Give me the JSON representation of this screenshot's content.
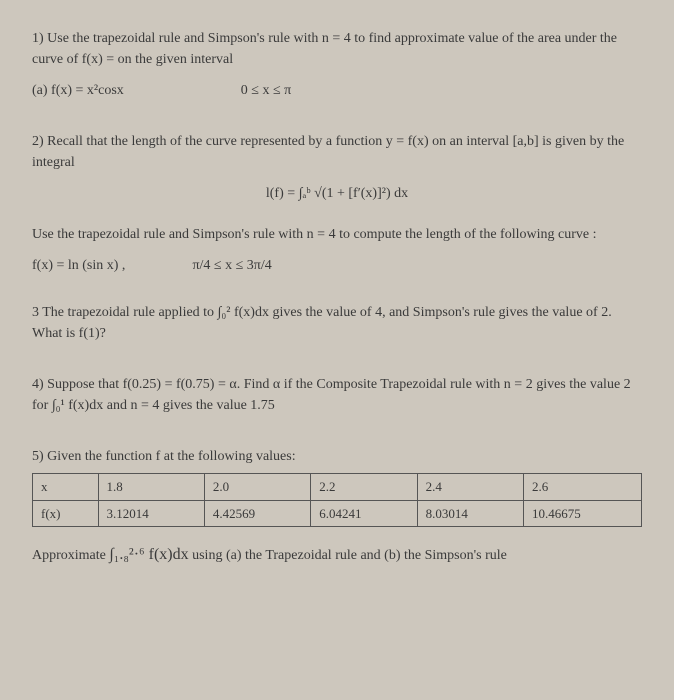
{
  "q1": {
    "text": "1) Use the trapezoidal rule and Simpson's rule with n = 4 to find approximate value of the area under the curve of f(x) = on the given interval",
    "parta_left": "(a) f(x) = x²cosx",
    "parta_right": "0 ≤ x ≤ π"
  },
  "q2": {
    "text1": "2) Recall that the length of the curve represented by a function y = f(x) on an interval [a,b] is given by the integral",
    "formula": "l(f) = ∫ₐᵇ √(1 + [f′(x)]²) dx",
    "text2": "Use the trapezoidal rule and Simpson's rule with n = 4 to compute the length of the following curve :",
    "fx": "f(x) = ln (sin x) ,",
    "interval": "π/4 ≤ x ≤ 3π/4"
  },
  "q3": {
    "text": "3 The trapezoidal rule applied to ∫₀² f(x)dx gives the value of 4, and Simpson's rule gives the value of 2. What is f(1)?"
  },
  "q4": {
    "text": "4) Suppose that f(0.25) = f(0.75) = α. Find α if the Composite Trapezoidal rule with n = 2 gives the value 2 for ∫₀¹ f(x)dx and n = 4 gives the value 1.75"
  },
  "q5": {
    "intro": "5) Given the function f at the following values:",
    "table": {
      "headers": [
        "x",
        "1.8",
        "2.0",
        "2.2",
        "2.4",
        "2.6"
      ],
      "row": [
        "f(x)",
        "3.12014",
        "4.42569",
        "6.04241",
        "8.03014",
        "10.46675"
      ]
    },
    "approx_pre": "Approximate ",
    "approx_int": "∫₁.₈²·⁶ f(x)dx",
    "approx_post": "   using (a) the Trapezoidal rule and (b) the Simpson's rule"
  },
  "style": {
    "bg": "#cdc7bd",
    "text_color": "#3a3a3a",
    "border_color": "#555",
    "font_family": "Times New Roman",
    "font_size_pt": 11
  }
}
